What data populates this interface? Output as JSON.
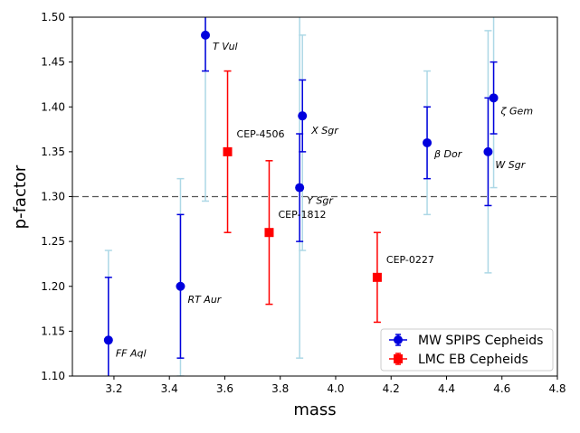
{
  "chart_data": {
    "type": "scatter",
    "title": "",
    "xlabel": "mass",
    "ylabel": "p-factor",
    "xlim": [
      3.05,
      4.8
    ],
    "ylim": [
      1.1,
      1.5
    ],
    "xticks": [
      "3.2",
      "3.4",
      "3.6",
      "3.8",
      "4.0",
      "4.2",
      "4.4",
      "4.6",
      "4.8"
    ],
    "yticks": [
      "1.10",
      "1.15",
      "1.20",
      "1.25",
      "1.30",
      "1.35",
      "1.40",
      "1.45",
      "1.50"
    ],
    "reference_line": {
      "y": 1.3,
      "style": "dashed",
      "color": "#555555"
    },
    "legend_position": "lower-right",
    "colors": {
      "mw": "#0000dd",
      "mw_light": "#add8e6",
      "lmc": "#ff0000"
    },
    "series": [
      {
        "name": "MW SPIPS Cepheids",
        "marker": "circle",
        "points": [
          {
            "label": "FF Aql",
            "x": 3.18,
            "y": 1.14,
            "err_lo": 0.05,
            "err_hi": 0.07,
            "sys_lo": 0.05,
            "sys_hi": 0.1
          },
          {
            "label": "RT Aur",
            "x": 3.44,
            "y": 1.2,
            "err_lo": 0.08,
            "err_hi": 0.08,
            "sys_lo": 0.1,
            "sys_hi": 0.12
          },
          {
            "label": "T Vul",
            "x": 3.53,
            "y": 1.48,
            "err_lo": 0.04,
            "err_hi": 0.04,
            "sys_lo": 0.185,
            "sys_hi": 0.1
          },
          {
            "label": "Y Sgr",
            "x": 3.87,
            "y": 1.31,
            "err_lo": 0.06,
            "err_hi": 0.06,
            "sys_lo": 0.19,
            "sys_hi": 0.2
          },
          {
            "label": "X Sgr",
            "x": 3.88,
            "y": 1.39,
            "err_lo": 0.04,
            "err_hi": 0.04,
            "sys_lo": 0.15,
            "sys_hi": 0.09
          },
          {
            "label": "β Dor",
            "x": 4.33,
            "y": 1.36,
            "err_lo": 0.04,
            "err_hi": 0.04,
            "sys_lo": 0.08,
            "sys_hi": 0.08
          },
          {
            "label": "W Sgr",
            "x": 4.55,
            "y": 1.35,
            "err_lo": 0.06,
            "err_hi": 0.06,
            "sys_lo": 0.135,
            "sys_hi": 0.135
          },
          {
            "label": "ζ Gem",
            "x": 4.57,
            "y": 1.41,
            "err_lo": 0.04,
            "err_hi": 0.04,
            "sys_lo": 0.1,
            "sys_hi": 0.1
          }
        ]
      },
      {
        "name": "LMC EB Cepheids",
        "marker": "square",
        "points": [
          {
            "label": "CEP-4506",
            "x": 3.61,
            "y": 1.35,
            "err_lo": 0.09,
            "err_hi": 0.09
          },
          {
            "label": "CEP-1812",
            "x": 3.76,
            "y": 1.26,
            "err_lo": 0.08,
            "err_hi": 0.08
          },
          {
            "label": "CEP-0227",
            "x": 4.15,
            "y": 1.21,
            "err_lo": 0.05,
            "err_hi": 0.05
          }
        ]
      }
    ]
  }
}
